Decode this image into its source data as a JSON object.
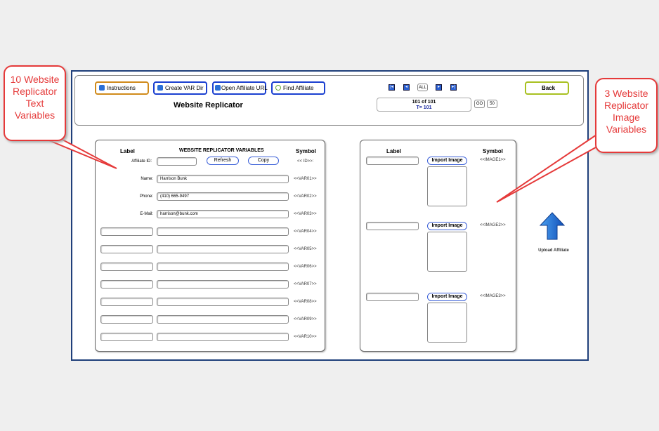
{
  "toolbar": {
    "instructions": "Instructions",
    "create_var_dir": "Create VAR Dir",
    "open_affiliate_url": "Open Affiliate URL",
    "find_affiliate": "Find Affiliate",
    "back": "Back",
    "all": "ALL",
    "go": "GO",
    "fifty": "50"
  },
  "header": {
    "title": "Website Replicator",
    "record": "101 of 101",
    "total": "T= 101"
  },
  "left": {
    "label_header": "Label",
    "title": "WEBSITE REPLICATOR VARIABLES",
    "symbol_header": "Symbol",
    "affiliate_label": "Affiliate ID:",
    "affiliate_value": "",
    "refresh": "Refresh",
    "copy": "Copy",
    "affiliate_symbol": "<< ID>>:",
    "rows": [
      {
        "label": "Name:",
        "value": "Harrison Bunk",
        "symbol": "<<VAR01>>"
      },
      {
        "label": "Phone:",
        "value": "(410) 665-9497",
        "symbol": "<<VAR02>>"
      },
      {
        "label": "E-Mail:",
        "value": "harrison@bunk.com",
        "symbol": "<<VAR03>>"
      },
      {
        "label": "",
        "value": "",
        "symbol": "<<VAR04>>"
      },
      {
        "label": "",
        "value": "",
        "symbol": "<<VAR05>>"
      },
      {
        "label": "",
        "value": "",
        "symbol": "<<VAR06>>"
      },
      {
        "label": "",
        "value": "",
        "symbol": "<<VAR07>>"
      },
      {
        "label": "",
        "value": "",
        "symbol": "<<VAR08>>"
      },
      {
        "label": "",
        "value": "",
        "symbol": "<<VAR09>>"
      },
      {
        "label": "",
        "value": "",
        "symbol": "<<VAR10>>"
      }
    ]
  },
  "right": {
    "label_header": "Label",
    "symbol_header": "Symbol",
    "import_label": "Import Image",
    "images": [
      {
        "label": "",
        "symbol": "<<IMAGE1>>"
      },
      {
        "label": "",
        "symbol": "<<IMAGE2>>"
      },
      {
        "label": "",
        "symbol": "<<IMAGE3>>"
      }
    ]
  },
  "upload": {
    "label": "Upload Affiliate"
  },
  "callouts": {
    "left": "10 Website Replicator Text Variables",
    "right": "3 Website Replicator Image Variables"
  },
  "colors": {
    "frame": "#1f3f7a",
    "button_border": "#1a3fd0",
    "instructions_border": "#d08a1a",
    "back_border": "#a8c020",
    "callout": "#e53a3a"
  }
}
